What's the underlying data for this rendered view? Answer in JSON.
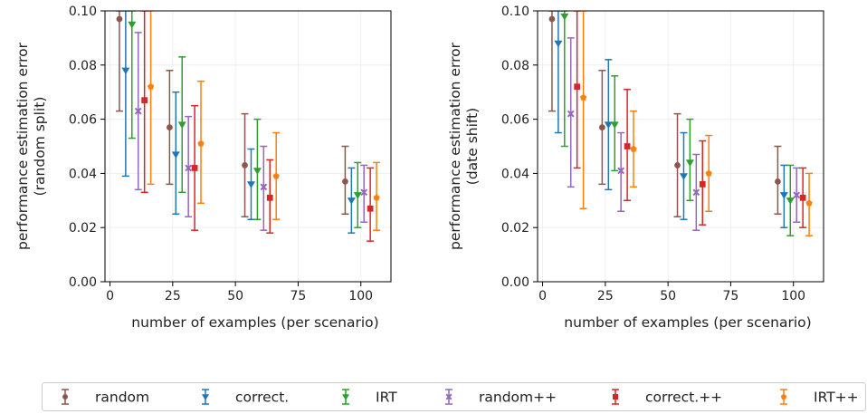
{
  "chart_data": [
    {
      "type": "scatter",
      "xlabel": "number of examples (per scenario)",
      "ylabel_lines": [
        "performance estimation error",
        "(random split)"
      ],
      "xlim": [
        -2,
        112
      ],
      "ylim": [
        0.0,
        0.1
      ],
      "xticks": [
        0,
        25,
        50,
        75,
        100
      ],
      "xtick_labels": [
        "0",
        "25",
        "50",
        "75",
        "100"
      ],
      "yticks": [
        0.0,
        0.02,
        0.04,
        0.06,
        0.08,
        0.1
      ],
      "ytick_labels": [
        "0.00",
        "0.02",
        "0.04",
        "0.06",
        "0.08",
        "0.10"
      ],
      "grid": true,
      "series": [
        {
          "name": "random",
          "color": "#8c564b",
          "marker": "circle",
          "points": [
            {
              "x": 3.75,
              "y": 0.097,
              "lo": 0.063,
              "hi": 0.1
            },
            {
              "x": 23.75,
              "y": 0.057,
              "lo": 0.036,
              "hi": 0.078
            },
            {
              "x": 53.75,
              "y": 0.043,
              "lo": 0.024,
              "hi": 0.062
            },
            {
              "x": 93.75,
              "y": 0.037,
              "lo": 0.025,
              "hi": 0.05
            }
          ]
        },
        {
          "name": "correct.",
          "color": "#1f77b4",
          "marker": "triangle-down",
          "points": [
            {
              "x": 6.25,
              "y": 0.078,
              "lo": 0.039,
              "hi": 0.1
            },
            {
              "x": 26.25,
              "y": 0.047,
              "lo": 0.025,
              "hi": 0.07
            },
            {
              "x": 56.25,
              "y": 0.036,
              "lo": 0.023,
              "hi": 0.049
            },
            {
              "x": 96.25,
              "y": 0.03,
              "lo": 0.018,
              "hi": 0.042
            }
          ]
        },
        {
          "name": "IRT",
          "color": "#2ca02c",
          "marker": "triangle-down",
          "points": [
            {
              "x": 8.75,
              "y": 0.095,
              "lo": 0.053,
              "hi": 0.1
            },
            {
              "x": 28.75,
              "y": 0.058,
              "lo": 0.033,
              "hi": 0.083
            },
            {
              "x": 58.75,
              "y": 0.041,
              "lo": 0.023,
              "hi": 0.06
            },
            {
              "x": 98.75,
              "y": 0.032,
              "lo": 0.02,
              "hi": 0.044
            }
          ]
        },
        {
          "name": "random++",
          "color": "#9467bd",
          "marker": "x",
          "points": [
            {
              "x": 11.25,
              "y": 0.063,
              "lo": 0.034,
              "hi": 0.092
            },
            {
              "x": 31.25,
              "y": 0.042,
              "lo": 0.024,
              "hi": 0.061
            },
            {
              "x": 61.25,
              "y": 0.035,
              "lo": 0.019,
              "hi": 0.05
            },
            {
              "x": 101.25,
              "y": 0.033,
              "lo": 0.022,
              "hi": 0.043
            }
          ]
        },
        {
          "name": "correct.++",
          "color": "#d62728",
          "marker": "square",
          "points": [
            {
              "x": 13.75,
              "y": 0.067,
              "lo": 0.033,
              "hi": 0.1
            },
            {
              "x": 33.75,
              "y": 0.042,
              "lo": 0.019,
              "hi": 0.065
            },
            {
              "x": 63.75,
              "y": 0.031,
              "lo": 0.018,
              "hi": 0.045
            },
            {
              "x": 103.75,
              "y": 0.027,
              "lo": 0.015,
              "hi": 0.042
            }
          ]
        },
        {
          "name": "IRT++",
          "color": "#ff7f0e",
          "marker": "pentagon",
          "points": [
            {
              "x": 16.25,
              "y": 0.072,
              "lo": 0.036,
              "hi": 0.1
            },
            {
              "x": 36.25,
              "y": 0.051,
              "lo": 0.029,
              "hi": 0.074
            },
            {
              "x": 66.25,
              "y": 0.039,
              "lo": 0.023,
              "hi": 0.055
            },
            {
              "x": 106.25,
              "y": 0.031,
              "lo": 0.019,
              "hi": 0.044
            }
          ]
        }
      ]
    },
    {
      "type": "scatter",
      "xlabel": "number of examples (per scenario)",
      "ylabel_lines": [
        "performance estimation error",
        "(date shift)"
      ],
      "xlim": [
        -2,
        112
      ],
      "ylim": [
        0.0,
        0.1
      ],
      "xticks": [
        0,
        25,
        50,
        75,
        100
      ],
      "xtick_labels": [
        "0",
        "25",
        "50",
        "75",
        "100"
      ],
      "yticks": [
        0.0,
        0.02,
        0.04,
        0.06,
        0.08,
        0.1
      ],
      "ytick_labels": [
        "0.00",
        "0.02",
        "0.04",
        "0.06",
        "0.08",
        "0.10"
      ],
      "grid": true,
      "series": [
        {
          "name": "random",
          "color": "#8c564b",
          "marker": "circle",
          "points": [
            {
              "x": 3.75,
              "y": 0.097,
              "lo": 0.063,
              "hi": 0.1
            },
            {
              "x": 23.75,
              "y": 0.057,
              "lo": 0.036,
              "hi": 0.078
            },
            {
              "x": 53.75,
              "y": 0.043,
              "lo": 0.024,
              "hi": 0.062
            },
            {
              "x": 93.75,
              "y": 0.037,
              "lo": 0.025,
              "hi": 0.05
            }
          ]
        },
        {
          "name": "correct.",
          "color": "#1f77b4",
          "marker": "triangle-down",
          "points": [
            {
              "x": 6.25,
              "y": 0.088,
              "lo": 0.055,
              "hi": 0.1
            },
            {
              "x": 26.25,
              "y": 0.058,
              "lo": 0.034,
              "hi": 0.082
            },
            {
              "x": 56.25,
              "y": 0.039,
              "lo": 0.023,
              "hi": 0.055
            },
            {
              "x": 96.25,
              "y": 0.032,
              "lo": 0.02,
              "hi": 0.043
            }
          ]
        },
        {
          "name": "IRT",
          "color": "#2ca02c",
          "marker": "triangle-down",
          "points": [
            {
              "x": 8.75,
              "y": 0.098,
              "lo": 0.05,
              "hi": 0.1
            },
            {
              "x": 28.75,
              "y": 0.058,
              "lo": 0.041,
              "hi": 0.076
            },
            {
              "x": 58.75,
              "y": 0.044,
              "lo": 0.03,
              "hi": 0.06
            },
            {
              "x": 98.75,
              "y": 0.03,
              "lo": 0.017,
              "hi": 0.043
            }
          ]
        },
        {
          "name": "random++",
          "color": "#9467bd",
          "marker": "x",
          "points": [
            {
              "x": 11.25,
              "y": 0.062,
              "lo": 0.035,
              "hi": 0.09
            },
            {
              "x": 31.25,
              "y": 0.041,
              "lo": 0.026,
              "hi": 0.055
            },
            {
              "x": 61.25,
              "y": 0.033,
              "lo": 0.019,
              "hi": 0.047
            },
            {
              "x": 101.25,
              "y": 0.032,
              "lo": 0.022,
              "hi": 0.042
            }
          ]
        },
        {
          "name": "correct.++",
          "color": "#d62728",
          "marker": "square",
          "points": [
            {
              "x": 13.75,
              "y": 0.072,
              "lo": 0.042,
              "hi": 0.1
            },
            {
              "x": 33.75,
              "y": 0.05,
              "lo": 0.03,
              "hi": 0.071
            },
            {
              "x": 63.75,
              "y": 0.036,
              "lo": 0.021,
              "hi": 0.052
            },
            {
              "x": 103.75,
              "y": 0.031,
              "lo": 0.02,
              "hi": 0.042
            }
          ]
        },
        {
          "name": "IRT++",
          "color": "#ff7f0e",
          "marker": "pentagon",
          "points": [
            {
              "x": 16.25,
              "y": 0.068,
              "lo": 0.027,
              "hi": 0.1
            },
            {
              "x": 36.25,
              "y": 0.049,
              "lo": 0.035,
              "hi": 0.063
            },
            {
              "x": 66.25,
              "y": 0.04,
              "lo": 0.026,
              "hi": 0.054
            },
            {
              "x": 106.25,
              "y": 0.029,
              "lo": 0.017,
              "hi": 0.04
            }
          ]
        }
      ]
    }
  ],
  "legend": {
    "placement": "bottom",
    "entries": [
      {
        "label": "random",
        "color": "#8c564b",
        "marker": "circle"
      },
      {
        "label": "correct.",
        "color": "#1f77b4",
        "marker": "triangle-down"
      },
      {
        "label": "IRT",
        "color": "#2ca02c",
        "marker": "triangle-down"
      },
      {
        "label": "random++",
        "color": "#9467bd",
        "marker": "x"
      },
      {
        "label": "correct.++",
        "color": "#d62728",
        "marker": "square"
      },
      {
        "label": "IRT++",
        "color": "#ff7f0e",
        "marker": "pentagon"
      }
    ]
  }
}
